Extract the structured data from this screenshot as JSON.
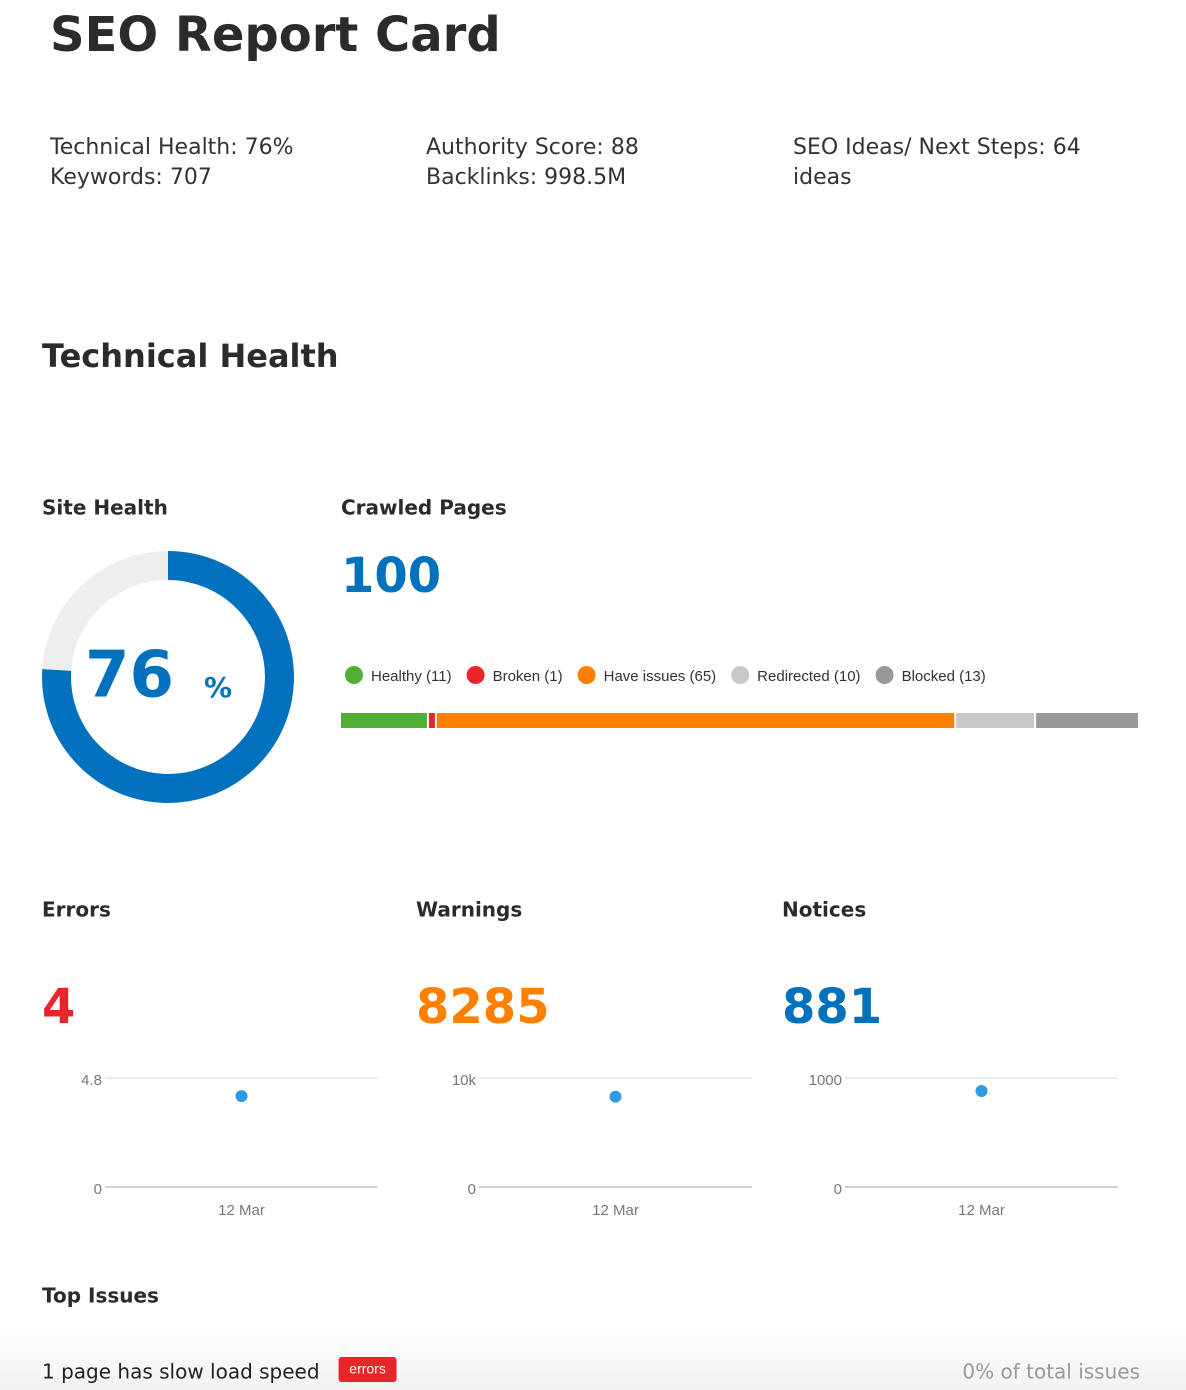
{
  "header": {
    "title": "SEO Report Card"
  },
  "summary": [
    {
      "lines": [
        "Technical Health: 76%",
        "Keywords: 707"
      ]
    },
    {
      "lines": [
        "Authority Score: 88",
        "Backlinks: 998.5M"
      ]
    },
    {
      "lines": [
        "SEO Ideas/ Next Steps: 64",
        "ideas"
      ]
    }
  ],
  "section": {
    "title": "Technical Health"
  },
  "site_health": {
    "type": "donut",
    "title": "Site Health",
    "value": 76,
    "unit": "%",
    "lim": [
      0,
      100
    ],
    "color": "#0071bc",
    "track_color": "#eeeeee"
  },
  "crawled_pages": {
    "type": "bar",
    "title": "Crawled Pages",
    "total": 100,
    "color": "#0071bc",
    "segments": [
      {
        "label": "Healthy (11)",
        "value": 11,
        "color": "#50ae34"
      },
      {
        "label": "Broken (1)",
        "value": 1,
        "color": "#e8262a"
      },
      {
        "label": "Have issues (65)",
        "value": 65,
        "color": "#ff8000"
      },
      {
        "label": "Redirected (10)",
        "value": 10,
        "color": "#c8c8c8"
      },
      {
        "label": "Blocked (13)",
        "value": 13,
        "color": "#999999"
      }
    ]
  },
  "chart_data": [
    {
      "type": "scatter",
      "title": "Errors",
      "color": "#e8262a",
      "point_color": "#2d9be4",
      "categories": [
        "12 Mar"
      ],
      "values": [
        4
      ],
      "ylim": [
        0,
        4.8
      ],
      "yticks": [
        0,
        4.8
      ],
      "grid": true
    },
    {
      "type": "scatter",
      "title": "Warnings",
      "color": "#ff8000",
      "point_color": "#2d9be4",
      "categories": [
        "12 Mar"
      ],
      "values": [
        8285
      ],
      "ylim": [
        0,
        10000
      ],
      "yticks": [
        0,
        {
          "value": 10000,
          "label": "10k"
        }
      ],
      "grid": true
    },
    {
      "type": "scatter",
      "title": "Notices",
      "color": "#0071bc",
      "point_color": "#2d9be4",
      "categories": [
        "12 Mar"
      ],
      "values": [
        881
      ],
      "ylim": [
        0,
        1000
      ],
      "yticks": [
        0,
        1000
      ],
      "grid": true
    }
  ],
  "top_issues": {
    "title": "Top Issues",
    "rows": [
      {
        "text": "1 page has slow load speed",
        "tag": "errors",
        "share": "0% of total issues"
      }
    ]
  }
}
